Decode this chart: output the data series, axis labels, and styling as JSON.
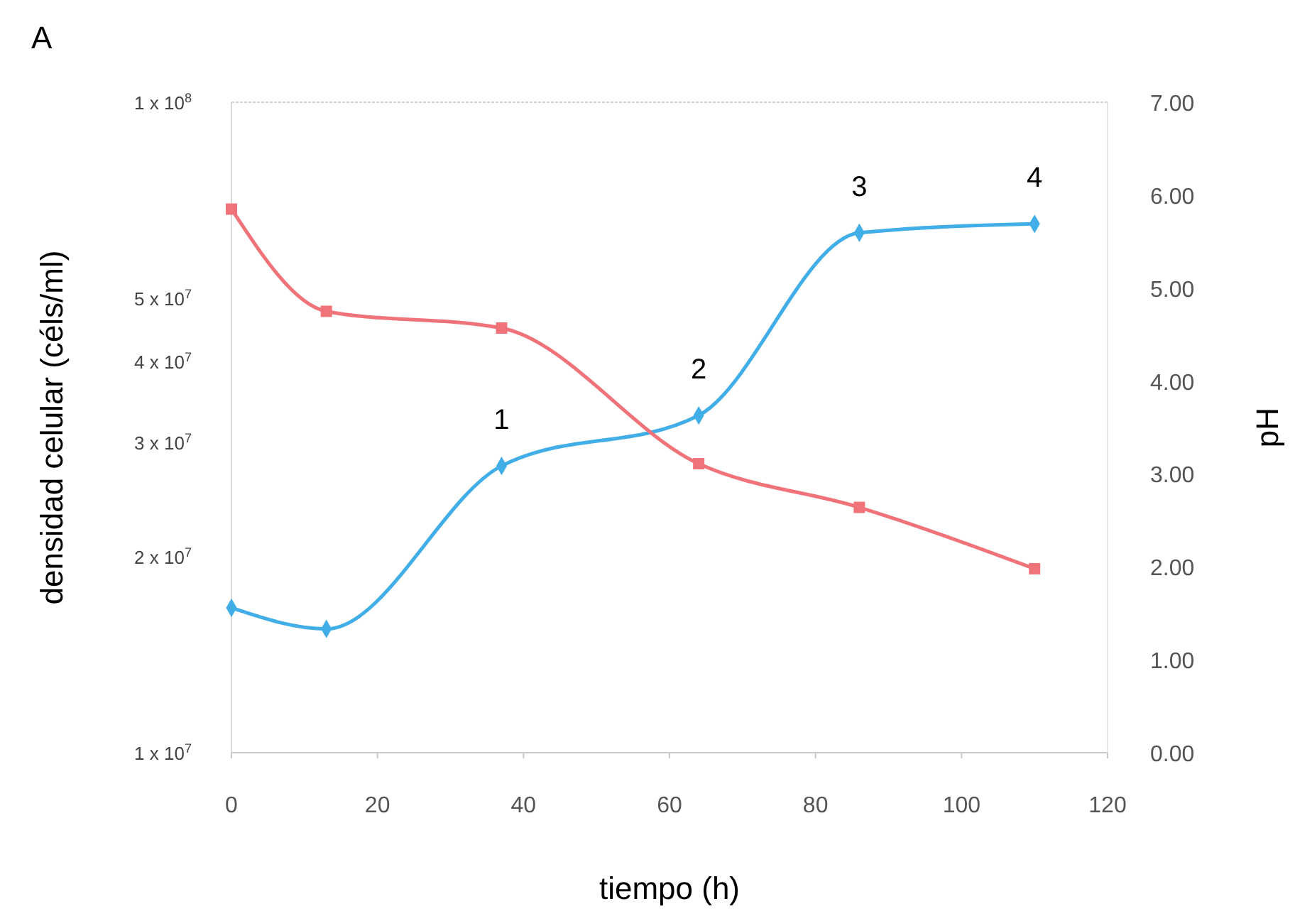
{
  "chart_data": {
    "type": "line",
    "title": "A",
    "xlabel": "tiempo (h)",
    "ylabel": "densidad celular (céls/ml)",
    "y2label": "pH",
    "x": [
      0,
      13,
      37,
      64,
      86,
      110
    ],
    "series": [
      {
        "color": "#41aee8",
        "marker": "diamond",
        "values": [
          16700000,
          15500000,
          27600000,
          33000000,
          63000000,
          65000000
        ]
      },
      {
        "color": "#f0737a",
        "marker": "square",
        "axis": "y2",
        "values": [
          5.85,
          4.75,
          4.57,
          3.11,
          2.64,
          1.98
        ]
      }
    ],
    "xlim": [
      0,
      120
    ],
    "xticks": [
      0,
      20,
      40,
      60,
      80,
      100,
      120
    ],
    "ylim": [
      10000000,
      100000000
    ],
    "log": "y",
    "yticks": [
      {
        "value": 10000000,
        "label": "1 x 10$^{7}$"
      },
      {
        "value": 20000000,
        "label": "2 x 10$^{7}$"
      },
      {
        "value": 30000000,
        "label": "3 x 10$^{7}$"
      },
      {
        "value": 40000000,
        "label": "4 x 10$^{7}$"
      },
      {
        "value": 50000000,
        "label": "5 x 10$^{7}$"
      },
      {
        "value": 100000000,
        "label": "1 x 10$^{8}$"
      }
    ],
    "y2lim": [
      0,
      7
    ],
    "y2ticks": [
      {
        "value": 0,
        "label": "0.00"
      },
      {
        "value": 1,
        "label": "1.00"
      },
      {
        "value": 2,
        "label": "2.00"
      },
      {
        "value": 3,
        "label": "3.00"
      },
      {
        "value": 4,
        "label": "4.00"
      },
      {
        "value": 5,
        "label": "5.00"
      },
      {
        "value": 6,
        "label": "6.00"
      },
      {
        "value": 7,
        "label": "7.00"
      }
    ],
    "annotations": [
      {
        "text": "1",
        "x": 37,
        "y": 27600000
      },
      {
        "text": "2",
        "x": 64,
        "y": 33000000
      },
      {
        "text": "3",
        "x": 86,
        "y": 63000000
      },
      {
        "text": "4",
        "x": 110,
        "y": 65000000
      }
    ],
    "grid": false
  }
}
